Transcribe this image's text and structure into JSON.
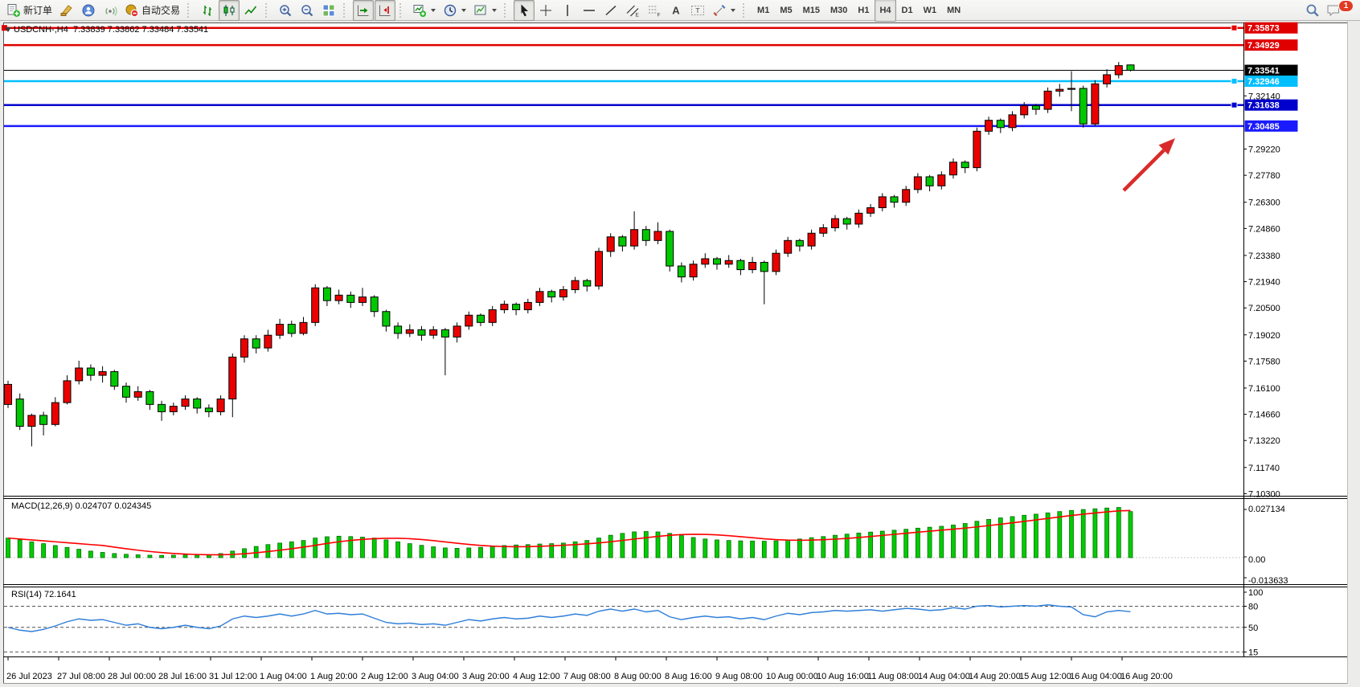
{
  "toolbar": {
    "groups": [
      {
        "items": [
          {
            "name": "new-order-button",
            "icon": "new-order",
            "label": "新订单"
          },
          {
            "name": "styler-button",
            "icon": "styler"
          },
          {
            "name": "mql5-community-button",
            "icon": "mql5"
          },
          {
            "name": "signals-button",
            "icon": "signals"
          },
          {
            "name": "auto-trading-button",
            "icon": "autotrade",
            "label": "自动交易"
          }
        ]
      },
      {
        "items": [
          {
            "name": "bar-chart-button",
            "icon": "bar-chart"
          },
          {
            "name": "candlestick-chart-button",
            "icon": "candle-chart",
            "pressed": true
          },
          {
            "name": "line-chart-button",
            "icon": "line-chart"
          }
        ]
      },
      {
        "items": [
          {
            "name": "zoom-in-button",
            "icon": "zoom-in"
          },
          {
            "name": "zoom-out-button",
            "icon": "zoom-out"
          },
          {
            "name": "tile-windows-button",
            "icon": "tile-windows"
          }
        ]
      },
      {
        "items": [
          {
            "name": "auto-scroll-button",
            "icon": "auto-scroll",
            "pressed": true
          },
          {
            "name": "chart-shift-button",
            "icon": "chart-shift",
            "pressed": true
          }
        ]
      },
      {
        "items": [
          {
            "name": "indicators-button",
            "icon": "indicators",
            "dropdown": true
          },
          {
            "name": "periods-button",
            "icon": "periods",
            "dropdown": true
          },
          {
            "name": "templates-button",
            "icon": "templates",
            "dropdown": true
          }
        ]
      },
      {
        "items": [
          {
            "name": "cursor-button",
            "icon": "cursor",
            "pressed": true
          },
          {
            "name": "crosshair-button",
            "icon": "crosshair"
          },
          {
            "name": "vertical-line-button",
            "icon": "vline"
          },
          {
            "name": "horizontal-line-button",
            "icon": "hline"
          },
          {
            "name": "trendline-button",
            "icon": "trendline"
          },
          {
            "name": "channel-button",
            "icon": "channel"
          },
          {
            "name": "fibonacci-button",
            "icon": "fibonacci"
          },
          {
            "name": "text-button",
            "icon": "text"
          },
          {
            "name": "text-label-button",
            "icon": "text-label"
          },
          {
            "name": "arrows-button",
            "icon": "arrows",
            "dropdown": true
          }
        ]
      }
    ],
    "timeframes": {
      "items": [
        "M1",
        "M5",
        "M15",
        "M30",
        "H1",
        "H4",
        "D1",
        "W1",
        "MN"
      ],
      "selected": "H4"
    },
    "right": [
      {
        "name": "search-button",
        "icon": "search"
      },
      {
        "name": "chat-button",
        "icon": "chat",
        "badge": "1"
      }
    ]
  },
  "chart": {
    "title_line": "USDCNH-,H4  7.33839 7.33862 7.33484 7.33541",
    "symbol": "USDCNH-",
    "timeframe": "H4",
    "ohlc_text": "7.33839 7.33862 7.33484 7.33541",
    "price_axis_ticks": [
      "7.32140",
      "7.29220",
      "7.27780",
      "7.26300",
      "7.24860",
      "7.23380",
      "7.21940",
      "7.20500",
      "7.19020",
      "7.17580",
      "7.16100",
      "7.14660",
      "7.13220",
      "7.11740",
      "7.10300"
    ],
    "price_lines": [
      {
        "name": "resistance-line-1",
        "price": 7.35873,
        "label": "7.35873",
        "color": "#e00000",
        "width": 2.5,
        "handle": true,
        "left_handle": true
      },
      {
        "name": "resistance-line-2",
        "price": 7.34929,
        "label": "7.34929",
        "color": "#e00000",
        "width": 2.5,
        "handle": false
      },
      {
        "name": "bid-price-line",
        "price": 7.33541,
        "label": "7.33541",
        "color": "#000000",
        "width": 1,
        "handle": false
      },
      {
        "name": "level-line-cyan",
        "price": 7.32946,
        "label": "7.32946",
        "color": "#00bfff",
        "width": 2.5,
        "handle": true
      },
      {
        "name": "support-line-1",
        "price": 7.31638,
        "label": "7.31638",
        "color": "#0000cc",
        "width": 2.5,
        "handle": true
      },
      {
        "name": "support-line-2",
        "price": 7.30485,
        "label": "7.30485",
        "color": "#1a1aff",
        "width": 2.5,
        "handle": false
      }
    ],
    "colors": {
      "up": "#eb0000",
      "down": "#00c800",
      "wick": "#000000",
      "arrow": "#d92b2b"
    }
  },
  "indicators": {
    "macd": {
      "title_line": "MACD(12,26,9) 0.024707 0.024345",
      "name": "MACD(12,26,9)",
      "value_main": "0.024707",
      "value_signal": "0.024345",
      "axis_labels": [
        "0.027134",
        "0.00",
        "-0.013633"
      ],
      "histogram_color": "#00cc00",
      "signal_color": "#ff0000"
    },
    "rsi": {
      "title_line": "RSI(14) 72.1641",
      "name": "RSI(14)",
      "value": "72.1641",
      "axis_labels": [
        "100",
        "80",
        "50",
        "15"
      ],
      "levels": [
        80,
        50,
        15
      ],
      "line_color": "#2f7ed8"
    }
  },
  "time_axis": {
    "labels": [
      "26 Jul 2023",
      "27 Jul 08:00",
      "28 Jul 00:00",
      "28 Jul 16:00",
      "31 Jul 12:00",
      "1 Aug 04:00",
      "1 Aug 20:00",
      "2 Aug 12:00",
      "3 Aug 04:00",
      "3 Aug 20:00",
      "4 Aug 12:00",
      "7 Aug 08:00",
      "8 Aug 00:00",
      "8 Aug 16:00",
      "9 Aug 08:00",
      "10 Aug 00:00",
      "10 Aug 16:00",
      "11 Aug 08:00",
      "14 Aug 04:00",
      "14 Aug 20:00",
      "15 Aug 12:00",
      "16 Aug 04:00",
      "16 Aug 20:00"
    ]
  },
  "chart_data": {
    "type": "candlestick",
    "symbol": "USDCNH",
    "timeframe": "H4",
    "ylim": [
      7.103,
      7.3608
    ],
    "candles": [
      [
        7.152,
        7.165,
        7.15,
        7.163
      ],
      [
        7.155,
        7.158,
        7.138,
        7.14
      ],
      [
        7.14,
        7.147,
        7.129,
        7.146
      ],
      [
        7.146,
        7.148,
        7.135,
        7.141
      ],
      [
        7.141,
        7.156,
        7.14,
        7.153
      ],
      [
        7.153,
        7.168,
        7.152,
        7.165
      ],
      [
        7.165,
        7.176,
        7.163,
        7.172
      ],
      [
        7.172,
        7.174,
        7.165,
        7.168
      ],
      [
        7.168,
        7.173,
        7.164,
        7.17
      ],
      [
        7.17,
        7.171,
        7.16,
        7.162
      ],
      [
        7.162,
        7.164,
        7.153,
        7.156
      ],
      [
        7.156,
        7.162,
        7.154,
        7.159
      ],
      [
        7.159,
        7.16,
        7.149,
        7.152
      ],
      [
        7.152,
        7.154,
        7.143,
        7.148
      ],
      [
        7.148,
        7.153,
        7.146,
        7.151
      ],
      [
        7.151,
        7.157,
        7.149,
        7.155
      ],
      [
        7.155,
        7.156,
        7.147,
        7.15
      ],
      [
        7.15,
        7.152,
        7.145,
        7.148
      ],
      [
        7.148,
        7.157,
        7.146,
        7.155
      ],
      [
        7.155,
        7.18,
        7.145,
        7.178
      ],
      [
        7.178,
        7.19,
        7.175,
        7.188
      ],
      [
        7.188,
        7.19,
        7.18,
        7.183
      ],
      [
        7.183,
        7.193,
        7.181,
        7.19
      ],
      [
        7.19,
        7.199,
        7.188,
        7.196
      ],
      [
        7.196,
        7.198,
        7.189,
        7.191
      ],
      [
        7.191,
        7.2,
        7.19,
        7.197
      ],
      [
        7.197,
        7.218,
        7.195,
        7.216
      ],
      [
        7.216,
        7.217,
        7.206,
        7.209
      ],
      [
        7.209,
        7.215,
        7.207,
        7.212
      ],
      [
        7.212,
        7.214,
        7.205,
        7.208
      ],
      [
        7.208,
        7.216,
        7.206,
        7.211
      ],
      [
        7.211,
        7.212,
        7.2,
        7.203
      ],
      [
        7.203,
        7.204,
        7.192,
        7.195
      ],
      [
        7.195,
        7.197,
        7.188,
        7.191
      ],
      [
        7.191,
        7.196,
        7.189,
        7.193
      ],
      [
        7.193,
        7.195,
        7.187,
        7.19
      ],
      [
        7.19,
        7.195,
        7.188,
        7.193
      ],
      [
        7.193,
        7.194,
        7.168,
        7.189
      ],
      [
        7.189,
        7.197,
        7.186,
        7.195
      ],
      [
        7.195,
        7.203,
        7.193,
        7.201
      ],
      [
        7.201,
        7.202,
        7.195,
        7.197
      ],
      [
        7.197,
        7.206,
        7.195,
        7.204
      ],
      [
        7.204,
        7.209,
        7.202,
        7.207
      ],
      [
        7.207,
        7.208,
        7.201,
        7.204
      ],
      [
        7.204,
        7.21,
        7.202,
        7.208
      ],
      [
        7.208,
        7.216,
        7.206,
        7.214
      ],
      [
        7.214,
        7.215,
        7.208,
        7.211
      ],
      [
        7.211,
        7.217,
        7.209,
        7.215
      ],
      [
        7.215,
        7.222,
        7.213,
        7.22
      ],
      [
        7.22,
        7.221,
        7.214,
        7.217
      ],
      [
        7.217,
        7.238,
        7.215,
        7.236
      ],
      [
        7.236,
        7.246,
        7.233,
        7.244
      ],
      [
        7.244,
        7.245,
        7.236,
        7.239
      ],
      [
        7.239,
        7.258,
        7.237,
        7.248
      ],
      [
        7.248,
        7.25,
        7.239,
        7.242
      ],
      [
        7.242,
        7.252,
        7.24,
        7.247
      ],
      [
        7.247,
        7.248,
        7.225,
        7.228
      ],
      [
        7.228,
        7.23,
        7.219,
        7.222
      ],
      [
        7.222,
        7.231,
        7.22,
        7.229
      ],
      [
        7.229,
        7.235,
        7.227,
        7.232
      ],
      [
        7.232,
        7.233,
        7.226,
        7.229
      ],
      [
        7.229,
        7.234,
        7.227,
        7.231
      ],
      [
        7.231,
        7.232,
        7.223,
        7.226
      ],
      [
        7.226,
        7.233,
        7.224,
        7.23
      ],
      [
        7.23,
        7.231,
        7.207,
        7.225
      ],
      [
        7.225,
        7.237,
        7.223,
        7.235
      ],
      [
        7.235,
        7.244,
        7.233,
        7.242
      ],
      [
        7.242,
        7.243,
        7.236,
        7.239
      ],
      [
        7.239,
        7.248,
        7.237,
        7.246
      ],
      [
        7.246,
        7.251,
        7.244,
        7.249
      ],
      [
        7.249,
        7.256,
        7.247,
        7.254
      ],
      [
        7.254,
        7.255,
        7.248,
        7.251
      ],
      [
        7.251,
        7.259,
        7.249,
        7.257
      ],
      [
        7.257,
        7.262,
        7.255,
        7.26
      ],
      [
        7.26,
        7.268,
        7.258,
        7.266
      ],
      [
        7.266,
        7.267,
        7.26,
        7.263
      ],
      [
        7.263,
        7.272,
        7.261,
        7.27
      ],
      [
        7.27,
        7.279,
        7.268,
        7.277
      ],
      [
        7.277,
        7.278,
        7.269,
        7.272
      ],
      [
        7.272,
        7.28,
        7.27,
        7.278
      ],
      [
        7.278,
        7.287,
        7.276,
        7.285
      ],
      [
        7.285,
        7.286,
        7.279,
        7.282
      ],
      [
        7.282,
        7.304,
        7.28,
        7.302
      ],
      [
        7.302,
        7.31,
        7.3,
        7.308
      ],
      [
        7.308,
        7.309,
        7.301,
        7.304
      ],
      [
        7.304,
        7.313,
        7.302,
        7.311
      ],
      [
        7.311,
        7.318,
        7.309,
        7.316
      ],
      [
        7.316,
        7.317,
        7.311,
        7.314
      ],
      [
        7.314,
        7.326,
        7.312,
        7.324
      ],
      [
        7.324,
        7.328,
        7.321,
        7.325
      ],
      [
        7.325,
        7.335,
        7.313,
        7.3255
      ],
      [
        7.3255,
        7.327,
        7.304,
        7.306
      ],
      [
        7.306,
        7.33,
        7.305,
        7.328
      ],
      [
        7.328,
        7.336,
        7.326,
        7.333
      ],
      [
        7.333,
        7.34,
        7.331,
        7.338
      ],
      [
        7.33839,
        7.33862,
        7.33484,
        7.33541
      ]
    ],
    "macd_histogram": [
      0.0105,
      0.0095,
      0.0085,
      0.0075,
      0.0065,
      0.0055,
      0.0045,
      0.0035,
      0.0028,
      0.0022,
      0.0018,
      0.0015,
      0.0013,
      0.0012,
      0.0013,
      0.0015,
      0.0014,
      0.0016,
      0.0022,
      0.0035,
      0.0048,
      0.006,
      0.007,
      0.0078,
      0.0085,
      0.0092,
      0.0105,
      0.0112,
      0.0115,
      0.0113,
      0.011,
      0.0105,
      0.0095,
      0.0085,
      0.0075,
      0.0066,
      0.0058,
      0.0052,
      0.005,
      0.0052,
      0.0055,
      0.006,
      0.0065,
      0.0068,
      0.007,
      0.0073,
      0.0075,
      0.0078,
      0.0085,
      0.0092,
      0.0105,
      0.012,
      0.013,
      0.0138,
      0.014,
      0.0138,
      0.013,
      0.0118,
      0.0108,
      0.01,
      0.0095,
      0.0092,
      0.009,
      0.0089,
      0.0088,
      0.009,
      0.0094,
      0.01,
      0.0107,
      0.0113,
      0.012,
      0.0126,
      0.0132,
      0.0137,
      0.0142,
      0.0147,
      0.0152,
      0.0158,
      0.0163,
      0.0168,
      0.0175,
      0.0183,
      0.0195,
      0.0205,
      0.0213,
      0.022,
      0.0227,
      0.0233,
      0.024,
      0.0247,
      0.0253,
      0.0258,
      0.0262,
      0.0266,
      0.0269,
      0.0247
    ],
    "rsi_values": [
      50,
      46,
      44,
      47,
      52,
      58,
      62,
      60,
      61,
      57,
      53,
      55,
      50,
      48,
      50,
      53,
      50,
      48,
      52,
      62,
      66,
      64,
      66,
      69,
      66,
      69,
      74,
      69,
      70,
      68,
      69,
      63,
      57,
      55,
      56,
      54,
      55,
      53,
      57,
      61,
      59,
      62,
      64,
      62,
      63,
      66,
      64,
      66,
      69,
      67,
      73,
      76,
      73,
      76,
      72,
      74,
      65,
      61,
      64,
      66,
      64,
      65,
      62,
      64,
      61,
      66,
      70,
      68,
      71,
      72,
      74,
      73,
      74,
      75,
      73,
      75,
      77,
      76,
      74,
      75,
      78,
      76,
      80,
      81,
      79,
      80,
      81,
      80,
      82,
      80,
      79,
      68,
      65,
      72,
      74,
      72.1641
    ]
  }
}
